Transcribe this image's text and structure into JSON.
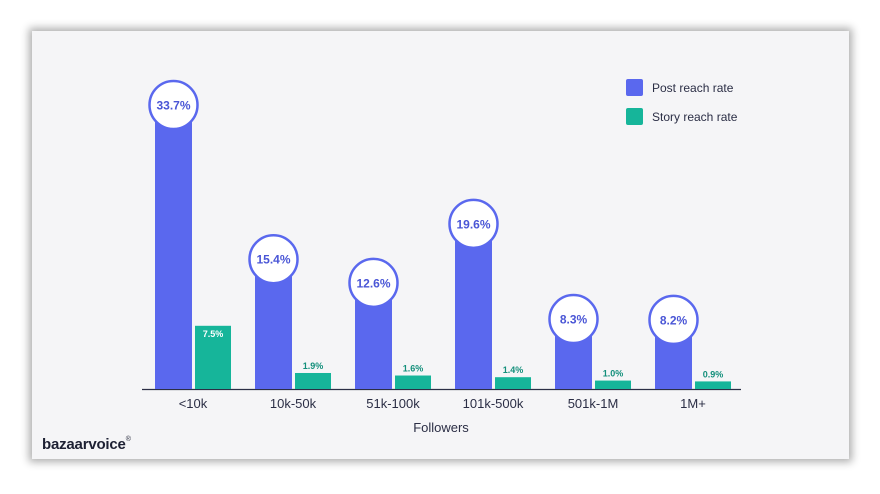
{
  "chart_data": {
    "type": "bar",
    "categories": [
      "<10k",
      "10k-50k",
      "51k-100k",
      "101k-500k",
      "501k-1M",
      "1M+"
    ],
    "series": [
      {
        "name": "Post reach rate",
        "color": "#5a68ee",
        "values": [
          33.7,
          15.4,
          12.6,
          19.6,
          8.3,
          8.2
        ],
        "labels": [
          "33.7%",
          "15.4%",
          "12.6%",
          "19.6%",
          "8.3%",
          "8.2%"
        ]
      },
      {
        "name": "Story reach rate",
        "color": "#16b59a",
        "values": [
          7.5,
          1.9,
          1.6,
          1.4,
          1.0,
          0.9
        ],
        "labels": [
          "7.5%",
          "1.9%",
          "1.6%",
          "1.4%",
          "1.0%",
          "0.9%"
        ]
      }
    ],
    "xlabel": "Followers",
    "ylabel": "",
    "ylim": [
      0,
      35
    ],
    "legend": "top-right"
  },
  "brand": {
    "name": "bazaarvoice",
    "mark": "®"
  }
}
